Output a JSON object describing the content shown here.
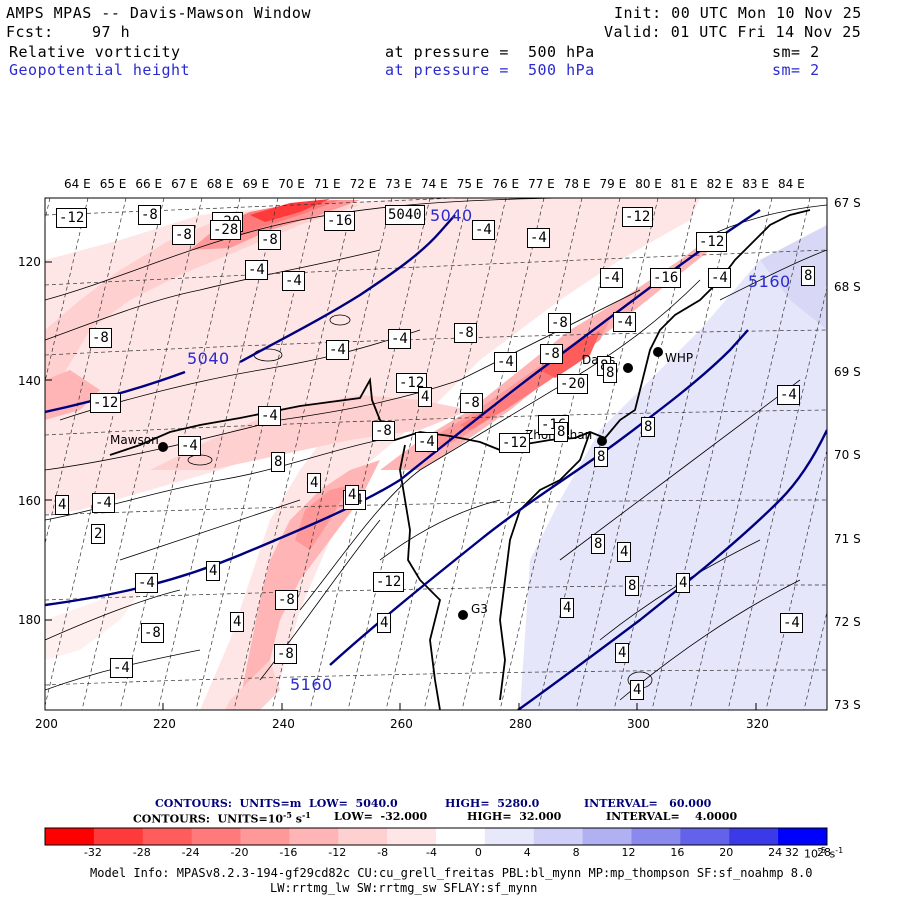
{
  "header": {
    "title": "AMPS MPAS -- Davis-Mawson Window",
    "fcst_label": "Fcst:",
    "fcst_value": "97 h",
    "init": "Init: 00 UTC Mon 10 Nov 25",
    "valid": "Valid: 01 UTC Fri 14 Nov 25",
    "field1_name": "Relative vorticity",
    "field1_level": "at pressure =  500 hPa",
    "field1_sm": "sm= 2",
    "field2_name": "Geopotential height",
    "field2_level": "at pressure =  500 hPa",
    "field2_sm": "sm= 2"
  },
  "map": {
    "top_lon_labels": [
      "64 E",
      "65 E",
      "66 E",
      "67 E",
      "68 E",
      "69 E",
      "70 E",
      "71 E",
      "72 E",
      "73 E",
      "74 E",
      "75 E",
      "76 E",
      "77 E",
      "78 E",
      "79 E",
      "80 E",
      "81 E",
      "82 E",
      "83 E",
      "84 E"
    ],
    "right_lat_labels": [
      "67 S",
      "68 S",
      "69 S",
      "70 S",
      "71 S",
      "72 S",
      "73 S"
    ],
    "left_y_ticks": [
      "120",
      "140",
      "160",
      "180"
    ],
    "bottom_x_ticks": [
      "200",
      "220",
      "240",
      "260",
      "280",
      "300",
      "320"
    ],
    "stations": [
      {
        "name": "Mawson"
      },
      {
        "name": "Davis"
      },
      {
        "name": "WHP"
      },
      {
        "name": "Zhongshan"
      },
      {
        "name": "G3"
      }
    ],
    "height_labels": [
      "5040",
      "5040",
      "5160",
      "5160"
    ],
    "vort_labels": [
      "-12",
      "-8",
      "-20",
      "-16",
      "-8",
      "-28",
      "-8",
      "5040",
      "-4",
      "-4",
      "-12",
      "-12",
      "-4",
      "-4",
      "-4",
      "-4",
      "-16",
      "-8",
      "-8",
      "-4",
      "-4",
      "-8",
      "-8",
      "-4",
      "-8",
      "-12",
      "-20",
      "-4",
      "-4",
      "-8",
      "-12",
      "-16",
      "-4",
      "-4",
      "-8",
      "-4",
      "-12",
      "4",
      "-4",
      "2",
      "-4",
      "8",
      "8",
      "-4",
      "8",
      "4",
      "4",
      "-12",
      "4",
      "-8",
      "8",
      "4",
      "-4",
      "4",
      "-8",
      "8",
      "4",
      "-8",
      "4",
      "4",
      "4",
      "-4",
      "4",
      "-4",
      "8",
      "8",
      "8",
      "4",
      "8"
    ]
  },
  "legend": {
    "line1_contours": "CONTOURS:  UNITS=m  LOW=  5040.0",
    "line1_high": "HIGH=  5280.0",
    "line1_interval": "INTERVAL=   60.000",
    "line2_contours": "CONTOURS:  UNITS=10",
    "line2_exp": "-5",
    "line2_s": " s",
    "line2_sexp": "-1",
    "line2_low": "LOW=  -32.000",
    "line2_high": "HIGH=  32.000",
    "line2_interval": "INTERVAL=    4.0000",
    "colorbar_ticks": [
      "-32",
      "-28",
      "-24",
      "-20",
      "-16",
      "-12",
      "-8",
      "-4",
      "0",
      "4",
      "8",
      "12",
      "16",
      "20",
      "24",
      "28",
      "32"
    ],
    "colorbar_unit": "10",
    "colorbar_unit_exp": "-5",
    "colorbar_unit_s": " s",
    "colorbar_unit_sexp": "-1",
    "colors": [
      "#ff0000",
      "#ff3a3a",
      "#ff5c5c",
      "#ff7a7a",
      "#ff9999",
      "#ffb5b5",
      "#ffd0d0",
      "#ffe6e6",
      "#ffffff",
      "#ffffff",
      "#e8e8fb",
      "#cfcff7",
      "#b0b0f2",
      "#8a8aee",
      "#6262ea",
      "#3a3ae8",
      "#0000ff"
    ]
  },
  "footer": {
    "model_info": "Model Info: MPASv8.2.3-194-gf29cd82c CU:cu_grell_freitas PBL:bl_mynn MP:mp_thompson SF:sf_noahmp 8.0",
    "model_info2": "LW:rrtmg_lw SW:rrtmg_sw SFLAY:sf_mynn"
  }
}
